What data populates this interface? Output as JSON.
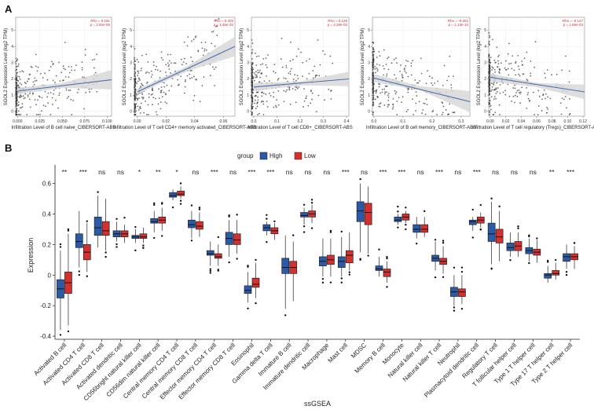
{
  "panel_a_letter": "A",
  "panel_b_letter": "B",
  "colors": {
    "high": "#2b5aa8",
    "low": "#d43030",
    "trend": "#4a6fb0",
    "ci": "#d6d6d6",
    "point": "#3a3a3a",
    "stat": "#d0303a"
  },
  "chart_data": [
    {
      "type": "scatter",
      "xlabel": "Infiltration Level of B cell naive_CIBERSORT-ABS",
      "ylabel": "SGOL2 Expression Level (log2 TPM)",
      "xticks": [
        "0.000",
        "0.025",
        "0.050",
        "0.075",
        "0.100"
      ],
      "xlim": [
        -0.002,
        0.105
      ],
      "yticks": [
        "0",
        "1",
        "2",
        "3",
        "4",
        "5"
      ],
      "ylim": [
        -0.3,
        5.8
      ],
      "stats": [
        "Rho = 0.161",
        "p = 2.92e-05"
      ],
      "trend": [
        [
          0.0,
          1.25
        ],
        [
          0.105,
          1.95
        ]
      ],
      "ci_upper": [
        [
          0.0,
          1.45
        ],
        [
          0.05,
          1.75
        ],
        [
          0.105,
          2.55
        ]
      ],
      "ci_lower": [
        [
          0.0,
          1.05
        ],
        [
          0.05,
          1.45
        ],
        [
          0.105,
          1.35
        ]
      ]
    },
    {
      "type": "scatter",
      "xlabel": "Infiltration Level of T cell CD4+ memory activated_CIBERSORT-ABS",
      "ylabel": "SGOL2 Expression Level (log2 TPM)",
      "xticks": [
        "0.00",
        "0.02",
        "0.04",
        "0.06"
      ],
      "xlim": [
        -0.002,
        0.068
      ],
      "yticks": [
        "0",
        "1",
        "2",
        "3",
        "4",
        "5"
      ],
      "ylim": [
        -0.3,
        5.8
      ],
      "stats": [
        "Rho = 0.403",
        "p = 1.46e-20"
      ],
      "trend": [
        [
          0.0,
          1.2
        ],
        [
          0.068,
          4.0
        ]
      ],
      "ci_upper": [
        [
          0.0,
          1.35
        ],
        [
          0.034,
          2.75
        ],
        [
          0.068,
          4.6
        ]
      ],
      "ci_lower": [
        [
          0.0,
          1.05
        ],
        [
          0.034,
          2.45
        ],
        [
          0.068,
          3.4
        ]
      ]
    },
    {
      "type": "scatter",
      "xlabel": "Infiltration Level of T cell CD8+_CIBERSORT-ABS",
      "ylabel": "SGOL2 Expression Level (log2 TPM)",
      "xticks": [
        "0.0",
        "0.1",
        "0.2",
        "0.3",
        "0.4"
      ],
      "xlim": [
        -0.01,
        0.41
      ],
      "yticks": [
        "0",
        "1",
        "2",
        "3",
        "4",
        "5"
      ],
      "ylim": [
        -0.3,
        5.8
      ],
      "stats": [
        "Rho = 0.126",
        "p = 4.29e-03"
      ],
      "trend": [
        [
          0.0,
          1.5
        ],
        [
          0.41,
          2.0
        ]
      ],
      "ci_upper": [
        [
          0.0,
          1.75
        ],
        [
          0.2,
          1.85
        ],
        [
          0.41,
          2.45
        ]
      ],
      "ci_lower": [
        [
          0.0,
          1.25
        ],
        [
          0.2,
          1.6
        ],
        [
          0.41,
          1.55
        ]
      ]
    },
    {
      "type": "scatter",
      "xlabel": "Infiltration Level of B cell memory_CIBERSORT-ABS",
      "ylabel": "SGOL2 Expression Level (log2 TPM)",
      "xticks": [
        "0.0",
        "0.1",
        "0.2",
        "0.3"
      ],
      "xlim": [
        -0.005,
        0.33
      ],
      "yticks": [
        "0",
        "1",
        "2",
        "3",
        "4",
        "5"
      ],
      "ylim": [
        -0.3,
        5.8
      ],
      "stats": [
        "Rho = -0.263",
        "p = 1.13e-10"
      ],
      "trend": [
        [
          0.0,
          2.05
        ],
        [
          0.33,
          0.6
        ]
      ],
      "ci_upper": [
        [
          0.0,
          2.3
        ],
        [
          0.16,
          1.55
        ],
        [
          0.33,
          1.25
        ]
      ],
      "ci_lower": [
        [
          0.0,
          1.8
        ],
        [
          0.16,
          1.3
        ],
        [
          0.33,
          -0.05
        ]
      ]
    },
    {
      "type": "scatter",
      "xlabel": "Infiltration Level of T cell regulatory (Tregs)_CIBERSORT-ABS",
      "ylabel": "SGOL2 Expression Level (log2 TPM)",
      "xticks": [
        "0.00",
        "0.02",
        "0.04",
        "0.06",
        "0.08",
        "0.10",
        "0.12"
      ],
      "xlim": [
        -0.002,
        0.122
      ],
      "yticks": [
        "0",
        "1",
        "2",
        "3",
        "4",
        "5"
      ],
      "ylim": [
        -0.3,
        5.8
      ],
      "stats": [
        "Rho = -0.147",
        "p = 1.69e-03"
      ],
      "trend": [
        [
          0.0,
          2.1
        ],
        [
          0.122,
          1.2
        ]
      ],
      "ci_upper": [
        [
          0.0,
          2.35
        ],
        [
          0.06,
          1.75
        ],
        [
          0.122,
          1.65
        ]
      ],
      "ci_lower": [
        [
          0.0,
          1.85
        ],
        [
          0.06,
          1.5
        ],
        [
          0.122,
          0.75
        ]
      ]
    },
    {
      "type": "box",
      "xlabel": "ssGSEA",
      "ylabel": "Expression",
      "ylim": [
        -0.42,
        0.68
      ],
      "yticks": [
        -0.4,
        -0.2,
        0.0,
        0.2,
        0.4,
        0.6
      ],
      "ytick_labels": [
        "-0.4",
        "-0.2",
        "0",
        "0.2",
        "0.4",
        "0.6"
      ],
      "legend_title": "group",
      "legend": [
        "High",
        "Low"
      ],
      "categories": [
        "Activated B cell",
        "Activated CD4 T cell",
        "Activated CD8 T cell",
        "Activated dendritic cell",
        "CD56bright natural killer cell",
        "CD56dim natural killer cell",
        "Central memory CD4 T cell",
        "Central memory CD8 T cell",
        "Effector memory CD4 T cell",
        "Effector memory CD8 T cell",
        "Eosinophil",
        "Gamma delta T cell",
        "Immature  B cell",
        "Immature dendritic cell",
        "Macrophage",
        "Mast cell",
        "MDSC",
        "Memory B cell",
        "Monocyte",
        "Natural killer cell",
        "Natural killer T cell",
        "Neutrophil",
        "Plasmacytoid dendritic cell",
        "Regulatory T cell",
        "T follicular helper cell",
        "Type 1 T helper cell",
        "Type 17 T helper cell",
        "Type 2 T helper cell"
      ],
      "significance": [
        "**",
        "***",
        "ns",
        "ns",
        "*",
        "**",
        "*",
        "ns",
        "***",
        "ns",
        "***",
        "***",
        "ns",
        "ns",
        "ns",
        "***",
        "ns",
        "***",
        "***",
        "ns",
        "***",
        "ns",
        "***",
        "ns",
        "ns",
        "ns",
        "**",
        "***"
      ],
      "series": [
        {
          "name": "High",
          "boxes": [
            [
              -0.36,
              -0.15,
              -0.09,
              -0.03,
              0.16
            ],
            [
              0.05,
              0.18,
              0.22,
              0.27,
              0.42
            ],
            [
              0.18,
              0.26,
              0.31,
              0.38,
              0.52
            ],
            [
              0.22,
              0.25,
              0.27,
              0.29,
              0.35
            ],
            [
              0.21,
              0.24,
              0.25,
              0.26,
              0.3
            ],
            [
              0.28,
              0.34,
              0.35,
              0.37,
              0.42
            ],
            [
              0.49,
              0.51,
              0.52,
              0.54,
              0.56
            ],
            [
              0.24,
              0.31,
              0.33,
              0.36,
              0.42
            ],
            [
              0.06,
              0.13,
              0.14,
              0.16,
              0.22
            ],
            [
              0.12,
              0.2,
              0.24,
              0.28,
              0.36
            ],
            [
              -0.18,
              -0.12,
              -0.1,
              -0.07,
              0.02
            ],
            [
              0.26,
              0.29,
              0.31,
              0.33,
              0.35
            ],
            [
              -0.22,
              0.01,
              0.05,
              0.11,
              0.26
            ],
            [
              0.33,
              0.38,
              0.39,
              0.41,
              0.44
            ],
            [
              -0.01,
              0.06,
              0.09,
              0.12,
              0.24
            ],
            [
              -0.01,
              0.05,
              0.09,
              0.12,
              0.25
            ],
            [
              0.15,
              0.35,
              0.42,
              0.48,
              0.6
            ],
            [
              -0.01,
              0.03,
              0.04,
              0.06,
              0.12
            ],
            [
              0.33,
              0.35,
              0.36,
              0.38,
              0.4
            ],
            [
              0.24,
              0.28,
              0.3,
              0.33,
              0.38
            ],
            [
              0.03,
              0.09,
              0.11,
              0.13,
              0.22
            ],
            [
              -0.2,
              -0.14,
              -0.11,
              -0.08,
              0.0
            ],
            [
              0.29,
              0.33,
              0.35,
              0.36,
              0.38
            ],
            [
              0.07,
              0.22,
              0.27,
              0.34,
              0.48
            ],
            [
              0.12,
              0.16,
              0.18,
              0.21,
              0.28
            ],
            [
              0.09,
              0.14,
              0.16,
              0.18,
              0.24
            ],
            [
              -0.05,
              -0.02,
              0.0,
              0.01,
              0.06
            ],
            [
              0.04,
              0.09,
              0.12,
              0.14,
              0.2
            ]
          ]
        },
        {
          "name": "Low",
          "boxes": [
            [
              -0.33,
              -0.12,
              -0.05,
              0.02,
              0.27
            ],
            [
              0.02,
              0.1,
              0.15,
              0.2,
              0.34
            ],
            [
              0.16,
              0.26,
              0.29,
              0.35,
              0.5
            ],
            [
              0.21,
              0.25,
              0.27,
              0.29,
              0.33
            ],
            [
              0.21,
              0.24,
              0.25,
              0.27,
              0.31
            ],
            [
              0.29,
              0.34,
              0.36,
              0.38,
              0.44
            ],
            [
              0.5,
              0.52,
              0.53,
              0.55,
              0.58
            ],
            [
              0.25,
              0.3,
              0.32,
              0.35,
              0.41
            ],
            [
              0.06,
              0.11,
              0.12,
              0.14,
              0.2
            ],
            [
              0.14,
              0.2,
              0.23,
              0.27,
              0.36
            ],
            [
              -0.15,
              -0.08,
              -0.06,
              -0.02,
              0.08
            ],
            [
              0.23,
              0.27,
              0.29,
              0.31,
              0.34
            ],
            [
              -0.17,
              0.01,
              0.05,
              0.09,
              0.22
            ],
            [
              0.34,
              0.38,
              0.4,
              0.42,
              0.46
            ],
            [
              -0.01,
              0.07,
              0.1,
              0.13,
              0.24
            ],
            [
              0.03,
              0.08,
              0.13,
              0.16,
              0.28
            ],
            [
              0.14,
              0.33,
              0.41,
              0.47,
              0.58
            ],
            [
              -0.05,
              -0.01,
              0.02,
              0.04,
              0.09
            ],
            [
              0.34,
              0.36,
              0.38,
              0.4,
              0.42
            ],
            [
              0.25,
              0.28,
              0.3,
              0.33,
              0.38
            ],
            [
              0.01,
              0.07,
              0.09,
              0.11,
              0.19
            ],
            [
              -0.19,
              -0.14,
              -0.11,
              -0.09,
              0.0
            ],
            [
              0.31,
              0.34,
              0.36,
              0.38,
              0.41
            ],
            [
              0.09,
              0.21,
              0.25,
              0.3,
              0.42
            ],
            [
              0.12,
              0.16,
              0.19,
              0.22,
              0.28
            ],
            [
              0.08,
              0.13,
              0.15,
              0.17,
              0.23
            ],
            [
              -0.03,
              0.0,
              0.01,
              0.03,
              0.08
            ],
            [
              0.04,
              0.1,
              0.12,
              0.14,
              0.19
            ]
          ]
        }
      ]
    }
  ]
}
